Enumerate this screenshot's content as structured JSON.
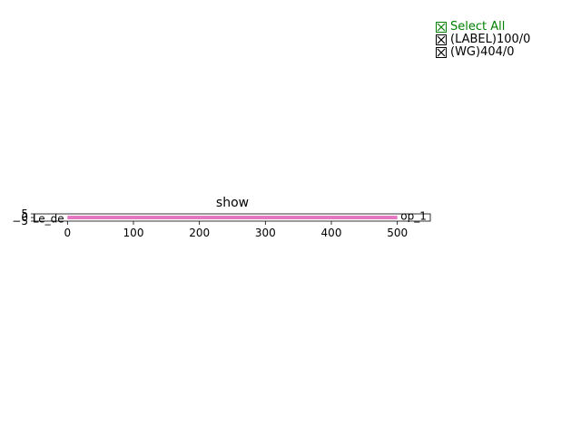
{
  "chart_data": {
    "type": "line",
    "title": "show",
    "xlabel": "",
    "ylabel": "",
    "xlim": [
      -50,
      550
    ],
    "ylim": [
      -5,
      5
    ],
    "x_ticks": [
      {
        "value": 0,
        "label": "0"
      },
      {
        "value": 100,
        "label": "100"
      },
      {
        "value": 200,
        "label": "200"
      },
      {
        "value": 300,
        "label": "300"
      },
      {
        "value": 400,
        "label": "400"
      },
      {
        "value": 500,
        "label": "500"
      }
    ],
    "y_ticks": [
      {
        "value": -5,
        "label": "−5"
      },
      {
        "value": 0,
        "label": "0"
      },
      {
        "value": 5,
        "label": "5"
      }
    ],
    "series": [
      {
        "color": "#e377c2",
        "x": [
          0,
          500
        ],
        "y": [
          0,
          0
        ]
      }
    ],
    "annotations": [
      {
        "text": "Le_de",
        "x": -5,
        "y": -2,
        "anchor": "end"
      },
      {
        "text": "op_1",
        "x": 505,
        "y": 2,
        "anchor": "start"
      }
    ],
    "grid": false
  },
  "legend": {
    "text_color": "#008000",
    "items": [
      {
        "label": "Select All",
        "checked": true,
        "color": "#008000"
      },
      {
        "label": "(LABEL)100/0",
        "checked": true,
        "color": "#000000"
      },
      {
        "label": "(WG)404/0",
        "checked": true,
        "color": "#000000"
      }
    ]
  }
}
